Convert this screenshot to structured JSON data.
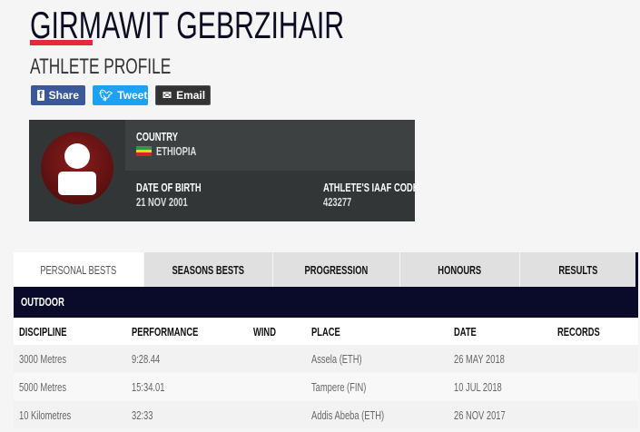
{
  "athlete": {
    "name": "GIRMAWIT GEBRZIHAIR",
    "subtitle": "ATHLETE PROFILE"
  },
  "share": {
    "share_label": "Share",
    "tweet_label": "Tweet",
    "email_label": "Email"
  },
  "profile": {
    "country_label": "COUNTRY",
    "country": "ETHIOPIA",
    "dob_label": "DATE OF BIRTH",
    "dob": "21 NOV 2001",
    "code_label": "ATHLETE'S IAAF CODE",
    "code": "423277"
  },
  "tabs": [
    {
      "label": "PERSONAL BESTS",
      "active": true
    },
    {
      "label": "SEASONS BESTS"
    },
    {
      "label": "PROGRESSION"
    },
    {
      "label": "HONOURS"
    },
    {
      "label": "RESULTS"
    }
  ],
  "section": "OUTDOOR",
  "columns": [
    "DISCIPLINE",
    "PERFORMANCE",
    "WIND",
    "PLACE",
    "DATE",
    "RECORDS"
  ],
  "rows": [
    [
      "3000 Metres",
      "9:28.44",
      "",
      "Assela (ETH)",
      "26 MAY 2018",
      ""
    ],
    [
      "5000 Metres",
      "15:34.01",
      "",
      "Tampere (FIN)",
      "10 JUL 2018",
      ""
    ],
    [
      "10 Kilometres",
      "32:33",
      "",
      "Addis Abeba (ETH)",
      "26 NOV 2017",
      ""
    ]
  ],
  "colors": {
    "accent": "#e8283a",
    "navy": "#0a0a2a",
    "facebook": "#3b5998",
    "twitter": "#1da1f2"
  }
}
